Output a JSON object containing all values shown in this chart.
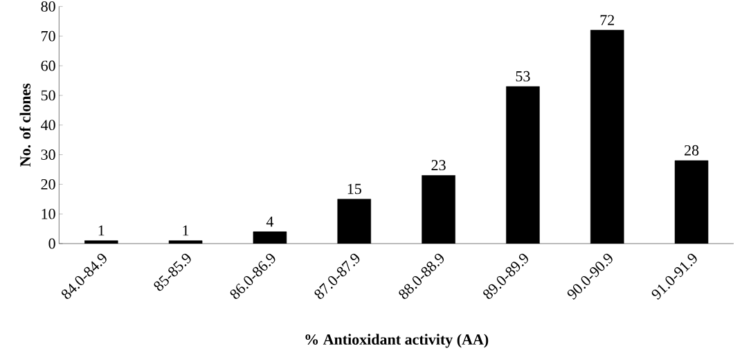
{
  "chart_data": {
    "type": "bar",
    "xlabel": "% Antioxidant activity (AA)",
    "ylabel": "No. of clones",
    "categories": [
      "84.0-84.9",
      "85-85.9",
      "86.0-86.9",
      "87.0-87.9",
      "88.0-88.9",
      "89.0-89.9",
      "90.0-90.9",
      "91.0-91.9"
    ],
    "values": [
      1,
      1,
      4,
      15,
      23,
      53,
      72,
      28
    ],
    "color": "#000000",
    "ylim": [
      0,
      80
    ],
    "yticks": [
      0,
      10,
      20,
      30,
      40,
      50,
      60,
      70,
      80
    ],
    "data_labels": true,
    "grid": false
  }
}
